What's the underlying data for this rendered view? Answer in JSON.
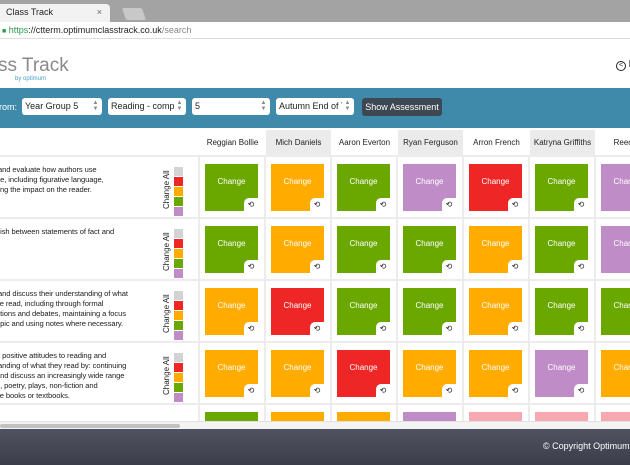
{
  "browser": {
    "tab_title": "Class Track",
    "close": "×",
    "url_scheme": "https",
    "url_host": "://ctterm.optimumclasstrack.co.uk",
    "url_path": "/search"
  },
  "header": {
    "logo": "ss Track",
    "logo_sub": "by optimum",
    "back_label": "B"
  },
  "filter": {
    "label": "rom:",
    "selects": [
      "Year Group 5",
      "Reading - compre",
      "5",
      "Autumn End of Te"
    ],
    "button": "Show Assessment"
  },
  "colors": {
    "grey": "#d3d3d3",
    "red": "#ee2626",
    "orange": "#ffab00",
    "green": "#6aa800",
    "purple": "#c08cc8",
    "pink": "#f7a8b0",
    "filter_bar": "#3f8aaa"
  },
  "students": [
    "Reggian Bollie",
    "Mich Daniels",
    "Aaron Everton",
    "Ryan Ferguson",
    "Arron French",
    "Katryna Griffiths",
    "Reece L"
  ],
  "change_all": "Change All",
  "cell_label": "Change",
  "rows": [
    {
      "text": " and evaluate how authors use\nge, including figurative language,\nring the impact on the reader.",
      "cells": [
        "green",
        "orange",
        "green",
        "purple",
        "red",
        "green",
        "purple"
      ]
    },
    {
      "text": "uish between statements of fact and\n",
      "cells": [
        "green",
        "orange",
        "green",
        "green",
        "orange",
        "green",
        "purple"
      ]
    },
    {
      "text": " and discuss their understanding of what\nve read, including through formal\nations and debates, maintaining a focus\nopic and using notes where necessary.",
      "cells": [
        "orange",
        "red",
        "green",
        "green",
        "orange",
        "green",
        "green"
      ]
    },
    {
      "text": "n positive attitudes to reading and\ntanding of what they read by: continuing\nand discuss an increasingly wide range\nn, poetry, plays, non-fiction and\nce books or textbooks.",
      "cells": [
        "orange",
        "orange",
        "red",
        "orange",
        "orange",
        "purple",
        "orange"
      ]
    },
    {
      "text": "",
      "cells": [
        "green",
        "orange",
        "orange",
        "purple",
        "pink",
        "pink",
        "pink"
      ]
    }
  ],
  "footer": "© Copyright Optimum"
}
